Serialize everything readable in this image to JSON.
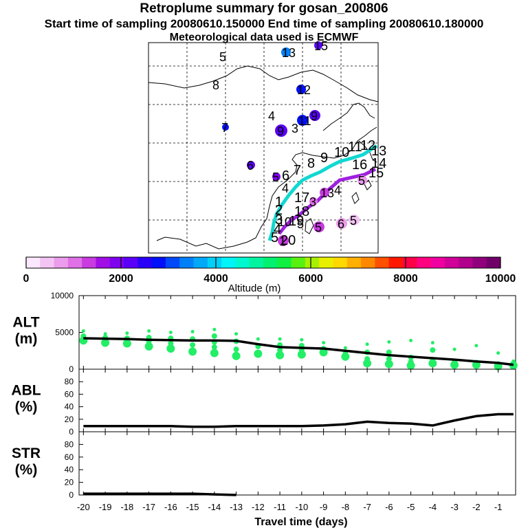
{
  "header": {
    "title": "Retroplume summary for gosan_200806",
    "sampling": "Start time of sampling 20080610.150000     End time of sampling 20080610.180000",
    "met": "Meteorological data used is ECMWF"
  },
  "colorbar": {
    "label": "Altitude (m)",
    "ticks": [
      "0",
      "2000",
      "4000",
      "6000",
      "8000",
      "10000"
    ],
    "min": 0,
    "max": 10000,
    "colors": [
      "#fce8fc",
      "#f4c4f4",
      "#ec9cec",
      "#e070e6",
      "#c83ce0",
      "#a010e4",
      "#8000f0",
      "#5a00f8",
      "#2800f8",
      "#0010f8",
      "#0048f8",
      "#0080f8",
      "#00a8f8",
      "#00d0f8",
      "#00f4f8",
      "#00f8d0",
      "#00f4a0",
      "#00f070",
      "#10f040",
      "#58f010",
      "#a8f000",
      "#e8f000",
      "#ffd800",
      "#ffb000",
      "#ff8800",
      "#ff5000",
      "#ff1800",
      "#ff0048",
      "#ff0080",
      "#f000a0",
      "#d00098",
      "#b0008c",
      "#90007c",
      "#700068"
    ]
  },
  "map_labels": [
    "1",
    "2",
    "3",
    "4",
    "5",
    "6",
    "7",
    "8",
    "9",
    "10",
    "11",
    "12",
    "13",
    "14",
    "15",
    "16",
    "17",
    "18",
    "19",
    "20"
  ],
  "chart_data": [
    {
      "type": "line",
      "name": "ALT",
      "ylabel": "ALT\n(m)",
      "ylabel_lines": [
        "ALT",
        "(m)"
      ],
      "ylim": [
        0,
        10000
      ],
      "yticks": [
        "0",
        "5000",
        "10000"
      ],
      "x": [
        -20,
        -19,
        -18,
        -17,
        -16,
        -15,
        -14,
        -13,
        -12,
        -11,
        -10,
        -9,
        -8,
        -7,
        -6,
        -5,
        -4,
        -3,
        -2,
        -1,
        -0.3
      ],
      "values": [
        4200,
        4150,
        4100,
        4000,
        3950,
        3900,
        3900,
        3850,
        3400,
        3000,
        2900,
        2800,
        2500,
        2200,
        1900,
        1700,
        1500,
        1300,
        1050,
        850,
        600
      ],
      "cluster_spread": [
        [
          -20,
          [
            3900,
            4200,
            4500,
            5200
          ]
        ],
        [
          -19,
          [
            3600,
            4300,
            4800
          ]
        ],
        [
          -18,
          [
            3500,
            4200,
            4900
          ]
        ],
        [
          -17,
          [
            3100,
            3800,
            4300,
            5200
          ]
        ],
        [
          -16,
          [
            2800,
            3500,
            4200,
            5000
          ]
        ],
        [
          -15,
          [
            2400,
            3300,
            4100,
            5100
          ]
        ],
        [
          -14,
          [
            2200,
            3000,
            3700,
            4500,
            5400
          ]
        ],
        [
          -13,
          [
            1800,
            2700,
            3800,
            4800
          ]
        ],
        [
          -12,
          [
            2100,
            3100,
            4100
          ]
        ],
        [
          -11,
          [
            1900,
            2600,
            3300,
            4100
          ]
        ],
        [
          -10,
          [
            2000,
            2600,
            3200,
            4000
          ]
        ],
        [
          -9,
          [
            2300,
            2800,
            3600
          ]
        ],
        [
          -8,
          [
            1700,
            2100,
            2900
          ]
        ],
        [
          -7,
          [
            800,
            1400,
            2300,
            3400
          ]
        ],
        [
          -6,
          [
            700,
            1400,
            2300,
            3700
          ]
        ],
        [
          -5,
          [
            500,
            1000,
            1600,
            3900
          ]
        ],
        [
          -4,
          [
            800,
            1300,
            2600,
            3600
          ]
        ],
        [
          -3,
          [
            600,
            1000,
            2700
          ]
        ],
        [
          -2,
          [
            600,
            900,
            3200
          ]
        ],
        [
          -1,
          [
            400,
            700,
            2200
          ]
        ],
        [
          -0.3,
          [
            500,
            800,
            1100
          ]
        ]
      ]
    },
    {
      "type": "line",
      "name": "ABL",
      "ylabel": "ABL\n(%)",
      "ylabel_lines": [
        "ABL",
        "(%)"
      ],
      "ylim": [
        0,
        100
      ],
      "yticks": [
        "0",
        "20",
        "40",
        "60",
        "80"
      ],
      "x": [
        -20,
        -19,
        -18,
        -17,
        -16,
        -15,
        -14,
        -13,
        -12,
        -11,
        -10,
        -9,
        -8,
        -7,
        -6,
        -5,
        -4,
        -3,
        -2,
        -1,
        -0.3
      ],
      "values": [
        9,
        9,
        9,
        9,
        9,
        8,
        8,
        9,
        9,
        9,
        9,
        10,
        12,
        16,
        14,
        13,
        10,
        18,
        25,
        28,
        28
      ]
    },
    {
      "type": "line",
      "name": "STR",
      "ylabel": "STR\n(%)",
      "ylabel_lines": [
        "STR",
        "(%)"
      ],
      "ylim": [
        0,
        100
      ],
      "yticks": [
        "0",
        "20",
        "40",
        "60",
        "80"
      ],
      "x": [
        -20,
        -19,
        -18,
        -17,
        -16,
        -15,
        -14,
        -13
      ],
      "values": [
        2,
        2,
        2,
        2,
        2,
        2,
        1,
        0
      ]
    }
  ],
  "xaxis": {
    "xlabel": "Travel time (days)",
    "xlim": [
      -20.2,
      -0.2
    ],
    "ticks": [
      "-20",
      "-19",
      "-18",
      "-17",
      "-16",
      "-15",
      "-14",
      "-13",
      "-12",
      "-11",
      "-10",
      "-9",
      "-8",
      "-7",
      "-6",
      "-5",
      "-4",
      "-3",
      "-2",
      "-1"
    ]
  }
}
